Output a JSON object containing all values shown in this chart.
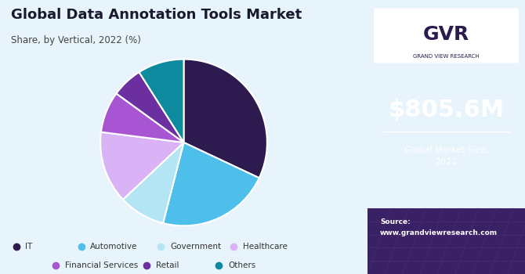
{
  "title": "Global Data Annotation Tools Market",
  "subtitle": "Share, by Vertical, 2022 (%)",
  "labels": [
    "IT",
    "Automotive",
    "Government",
    "Healthcare",
    "Financial Services",
    "Retail",
    "Others"
  ],
  "values": [
    32,
    22,
    9,
    14,
    8,
    6,
    9
  ],
  "colors": [
    "#2d1a4f",
    "#4dbfea",
    "#b3e5f5",
    "#d9b3f5",
    "#a855d4",
    "#6b2fa0",
    "#0e8a9e"
  ],
  "background_left": "#e8f4fb",
  "background_right": "#2d1050",
  "market_size": "$805.6M",
  "market_label": "Global Market Size,\n2022",
  "source_text": "Source:\nwww.grandviewresearch.com",
  "legend_colors": [
    "#2d1a4f",
    "#4dbfea",
    "#b3e5f5",
    "#d9b3f5",
    "#a855d4",
    "#6b2fa0",
    "#0e8a9e"
  ],
  "legend_labels": [
    "IT",
    "Automotive",
    "Government",
    "Healthcare",
    "Financial Services",
    "Retail",
    "Others"
  ]
}
